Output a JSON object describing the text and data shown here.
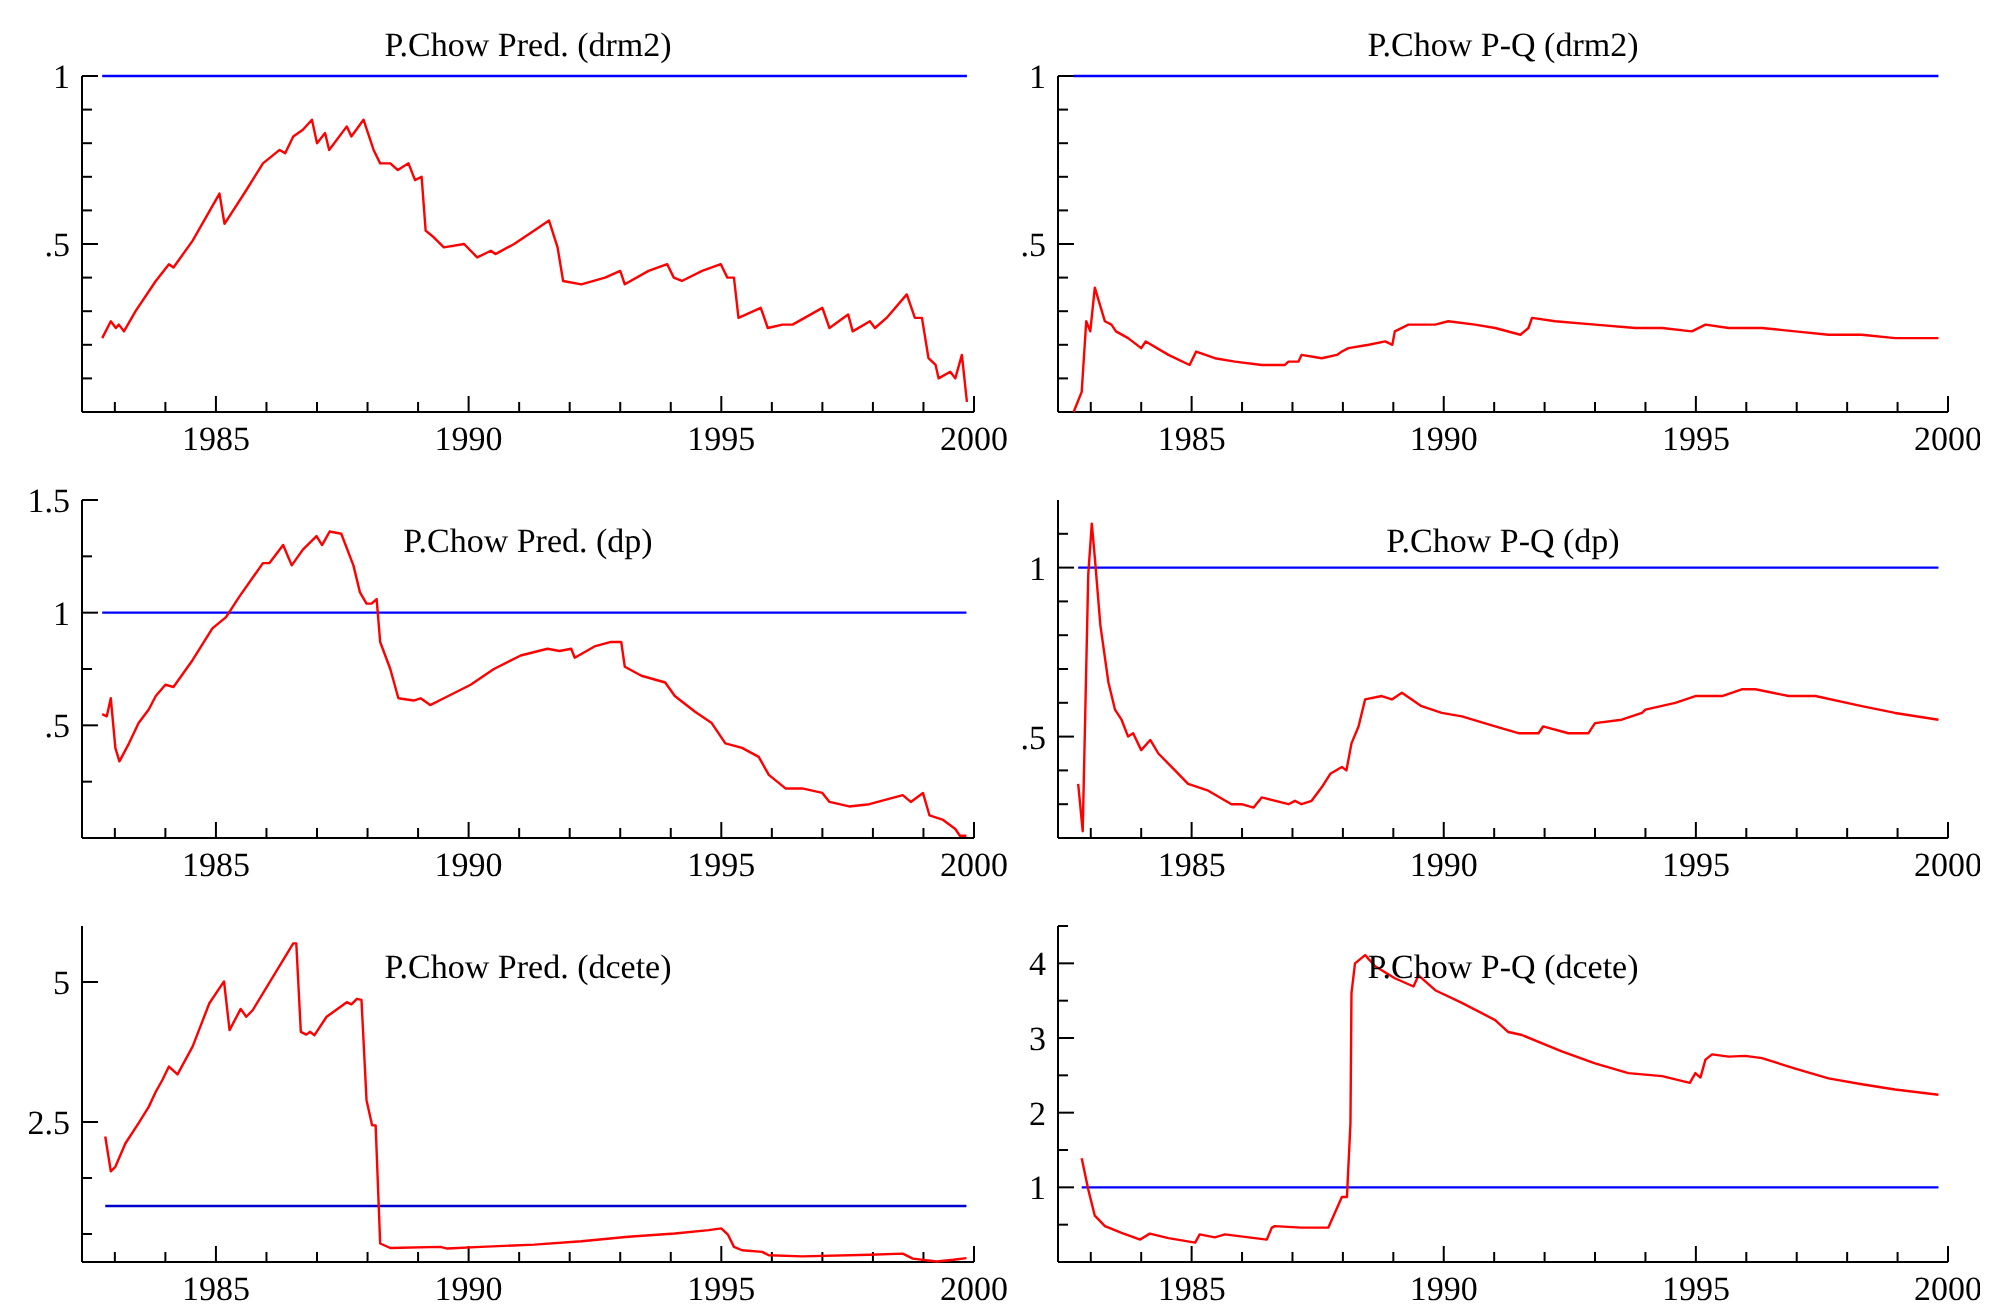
{
  "chart_data": [
    {
      "type": "line",
      "title": "P.Chow Pred. (drm2)",
      "x": [
        1982.75,
        1982.92,
        1983.02,
        1983.08,
        1983.18,
        1983.41,
        1983.81,
        1984.07,
        1984.16,
        1984.54,
        1985.07,
        1985.17,
        1985.6,
        1985.93,
        1986.26,
        1986.37,
        1986.53,
        1986.72,
        1986.9,
        1987.0,
        1987.16,
        1987.24,
        1987.59,
        1987.68,
        1987.92,
        1988.12,
        1988.25,
        1988.45,
        1988.6,
        1988.81,
        1988.94,
        1989.07,
        1989.15,
        1989.31,
        1989.51,
        1989.91,
        1990.17,
        1990.44,
        1990.53,
        1990.9,
        1991.3,
        1991.59,
        1991.76,
        1991.87,
        1992.23,
        1992.7,
        1993.0,
        1993.09,
        1993.56,
        1993.93,
        1994.06,
        1994.22,
        1994.62,
        1994.99,
        1995.12,
        1995.25,
        1995.34,
        1995.78,
        1995.92,
        1996.21,
        1996.41,
        1997.0,
        1997.14,
        1997.51,
        1997.6,
        1997.94,
        1998.04,
        1998.27,
        1998.67,
        1998.83,
        1998.97,
        1999.1,
        1999.24,
        1999.3,
        1999.53,
        1999.63,
        1999.76,
        1999.86
      ],
      "series": [
        {
          "color": "#ff0000",
          "values": [
            0.22,
            0.27,
            0.25,
            0.26,
            0.24,
            0.3,
            0.39,
            0.44,
            0.43,
            0.51,
            0.65,
            0.56,
            0.66,
            0.74,
            0.78,
            0.77,
            0.82,
            0.84,
            0.87,
            0.8,
            0.83,
            0.78,
            0.85,
            0.82,
            0.87,
            0.78,
            0.74,
            0.74,
            0.72,
            0.74,
            0.69,
            0.7,
            0.54,
            0.52,
            0.49,
            0.5,
            0.46,
            0.48,
            0.47,
            0.5,
            0.54,
            0.57,
            0.49,
            0.39,
            0.38,
            0.4,
            0.42,
            0.38,
            0.42,
            0.44,
            0.4,
            0.39,
            0.42,
            0.44,
            0.4,
            0.4,
            0.28,
            0.31,
            0.25,
            0.26,
            0.26,
            0.31,
            0.25,
            0.29,
            0.24,
            0.27,
            0.25,
            0.28,
            0.35,
            0.28,
            0.28,
            0.16,
            0.14,
            0.1,
            0.12,
            0.1,
            0.17,
            0.03
          ]
        }
      ],
      "xlim": [
        1982.35,
        2000
      ],
      "xticks": [
        {
          "value": 1983,
          "label": null
        },
        {
          "value": 1984,
          "label": null
        },
        1985,
        {
          "value": 1986,
          "label": null
        },
        {
          "value": 1987,
          "label": null
        },
        {
          "value": 1988,
          "label": null
        },
        {
          "value": 1989,
          "label": null
        },
        1990,
        {
          "value": 1991,
          "label": null
        },
        {
          "value": 1992,
          "label": null
        },
        {
          "value": 1993,
          "label": null
        },
        {
          "value": 1994,
          "label": null
        },
        1995,
        {
          "value": 1996,
          "label": null
        },
        {
          "value": 1997,
          "label": null
        },
        {
          "value": 1998,
          "label": null
        },
        {
          "value": 1999,
          "label": null
        },
        2000
      ],
      "ylim": [
        0,
        1
      ],
      "yticks": [
        {
          "value": 0.1,
          "label": null
        },
        {
          "value": 0.2,
          "label": null
        },
        {
          "value": 0.3,
          "label": null
        },
        {
          "value": 0.4,
          "label": null
        },
        {
          "value": 0.5,
          "label": ".5"
        },
        {
          "value": 0.6,
          "label": null
        },
        {
          "value": 0.7,
          "label": null
        },
        {
          "value": 0.8,
          "label": null
        },
        {
          "value": 0.9,
          "label": null
        },
        1
      ],
      "ref_lines": [
        {
          "axis": "y",
          "value": 1,
          "color": "#0000ff"
        }
      ],
      "grid": false
    },
    {
      "type": "line",
      "title": "P.Chow P-Q (drm2)",
      "x": [
        1982.66,
        1982.82,
        1982.91,
        1982.99,
        1983.08,
        1983.28,
        1983.41,
        1983.5,
        1983.74,
        1984.0,
        1984.09,
        1984.54,
        1984.96,
        1985.09,
        1985.46,
        1985.86,
        1986.39,
        1986.85,
        1986.92,
        1987.12,
        1987.18,
        1987.58,
        1987.88,
        1987.98,
        1988.11,
        1988.51,
        1988.84,
        1988.98,
        1989.03,
        1989.3,
        1989.83,
        1990.09,
        1990.62,
        1991.02,
        1991.52,
        1991.68,
        1991.75,
        1992.21,
        1993.0,
        1993.8,
        1994.33,
        1994.92,
        1995.19,
        1995.65,
        1996.31,
        1996.97,
        1997.63,
        1998.29,
        1998.95,
        1999.81
      ],
      "series": [
        {
          "color": "#ff0000",
          "values": [
            0,
            0.06,
            0.27,
            0.24,
            0.37,
            0.27,
            0.26,
            0.24,
            0.22,
            0.19,
            0.21,
            0.17,
            0.14,
            0.18,
            0.16,
            0.15,
            0.14,
            0.14,
            0.15,
            0.15,
            0.17,
            0.16,
            0.17,
            0.18,
            0.19,
            0.2,
            0.21,
            0.2,
            0.24,
            0.26,
            0.26,
            0.27,
            0.26,
            0.25,
            0.23,
            0.25,
            0.28,
            0.27,
            0.26,
            0.25,
            0.25,
            0.24,
            0.26,
            0.25,
            0.25,
            0.24,
            0.23,
            0.23,
            0.22,
            0.22
          ]
        }
      ],
      "xlim": [
        1982.35,
        2000
      ],
      "xticks": [
        {
          "value": 1983,
          "label": null
        },
        {
          "value": 1984,
          "label": null
        },
        1985,
        {
          "value": 1986,
          "label": null
        },
        {
          "value": 1987,
          "label": null
        },
        {
          "value": 1988,
          "label": null
        },
        {
          "value": 1989,
          "label": null
        },
        1990,
        {
          "value": 1991,
          "label": null
        },
        {
          "value": 1992,
          "label": null
        },
        {
          "value": 1993,
          "label": null
        },
        {
          "value": 1994,
          "label": null
        },
        1995,
        {
          "value": 1996,
          "label": null
        },
        {
          "value": 1997,
          "label": null
        },
        {
          "value": 1998,
          "label": null
        },
        {
          "value": 1999,
          "label": null
        },
        2000
      ],
      "ylim": [
        0,
        1
      ],
      "yticks": [
        {
          "value": 0.1,
          "label": null
        },
        {
          "value": 0.2,
          "label": null
        },
        {
          "value": 0.3,
          "label": null
        },
        {
          "value": 0.4,
          "label": null
        },
        {
          "value": 0.5,
          "label": ".5"
        },
        {
          "value": 0.6,
          "label": null
        },
        {
          "value": 0.7,
          "label": null
        },
        {
          "value": 0.8,
          "label": null
        },
        {
          "value": 0.9,
          "label": null
        },
        1
      ],
      "ref_lines": [
        {
          "axis": "y",
          "value": 1,
          "color": "#0000ff"
        }
      ],
      "grid": false
    },
    {
      "type": "line",
      "title": "P.Chow Pred. (dp)",
      "x": [
        1982.75,
        1982.84,
        1982.92,
        1983.01,
        1983.09,
        1983.28,
        1983.47,
        1983.67,
        1983.81,
        1984.0,
        1984.16,
        1984.54,
        1984.93,
        1985.2,
        1985.46,
        1985.93,
        1986.06,
        1986.33,
        1986.5,
        1986.72,
        1986.99,
        1987.1,
        1987.25,
        1987.48,
        1987.72,
        1987.85,
        1987.98,
        1988.08,
        1988.18,
        1988.25,
        1988.45,
        1988.61,
        1988.91,
        1989.05,
        1989.24,
        1989.51,
        1990.04,
        1990.5,
        1991.03,
        1991.56,
        1991.8,
        1992.03,
        1992.1,
        1992.49,
        1992.82,
        1993.02,
        1993.09,
        1993.42,
        1993.89,
        1994.08,
        1994.48,
        1994.81,
        1995.08,
        1995.41,
        1995.74,
        1995.94,
        1996.27,
        1996.6,
        1997.0,
        1997.14,
        1997.53,
        1997.93,
        1998.59,
        1998.75,
        1998.99,
        1999.12,
        1999.39,
        1999.63,
        1999.72,
        1999.85
      ],
      "series": [
        {
          "color": "#ff0000",
          "values": [
            0.55,
            0.54,
            0.62,
            0.4,
            0.34,
            0.42,
            0.51,
            0.57,
            0.63,
            0.68,
            0.67,
            0.79,
            0.93,
            0.98,
            1.07,
            1.22,
            1.22,
            1.3,
            1.21,
            1.28,
            1.34,
            1.3,
            1.36,
            1.35,
            1.21,
            1.09,
            1.04,
            1.04,
            1.06,
            0.87,
            0.75,
            0.62,
            0.61,
            0.62,
            0.59,
            0.62,
            0.68,
            0.75,
            0.81,
            0.84,
            0.83,
            0.84,
            0.8,
            0.85,
            0.87,
            0.87,
            0.76,
            0.72,
            0.69,
            0.63,
            0.56,
            0.51,
            0.42,
            0.4,
            0.36,
            0.28,
            0.22,
            0.22,
            0.2,
            0.16,
            0.14,
            0.15,
            0.19,
            0.16,
            0.2,
            0.1,
            0.08,
            0.04,
            0.01,
            0.01
          ]
        }
      ],
      "xlim": [
        1982.35,
        2000
      ],
      "xticks": [
        {
          "value": 1983,
          "label": null
        },
        {
          "value": 1984,
          "label": null
        },
        1985,
        {
          "value": 1986,
          "label": null
        },
        {
          "value": 1987,
          "label": null
        },
        {
          "value": 1988,
          "label": null
        },
        {
          "value": 1989,
          "label": null
        },
        1990,
        {
          "value": 1991,
          "label": null
        },
        {
          "value": 1992,
          "label": null
        },
        {
          "value": 1993,
          "label": null
        },
        {
          "value": 1994,
          "label": null
        },
        1995,
        {
          "value": 1996,
          "label": null
        },
        {
          "value": 1997,
          "label": null
        },
        {
          "value": 1998,
          "label": null
        },
        {
          "value": 1999,
          "label": null
        },
        2000
      ],
      "ylim": [
        0,
        1.5
      ],
      "yticks": [
        {
          "value": 0.25,
          "label": null
        },
        {
          "value": 0.5,
          "label": ".5"
        },
        {
          "value": 0.75,
          "label": null
        },
        1,
        {
          "value": 1.25,
          "label": null
        },
        1.5
      ],
      "ref_lines": [
        {
          "axis": "y",
          "value": 1,
          "color": "#0000ff"
        }
      ],
      "grid": false
    },
    {
      "type": "line",
      "title": "P.Chow P-Q (dp)",
      "x": [
        1982.75,
        1982.84,
        1982.95,
        1983.02,
        1983.08,
        1983.19,
        1983.35,
        1983.48,
        1983.61,
        1983.74,
        1983.84,
        1984.0,
        1984.18,
        1984.34,
        1984.67,
        1984.93,
        1985.33,
        1985.79,
        1985.99,
        1986.23,
        1986.39,
        1986.92,
        1987.05,
        1987.18,
        1987.38,
        1987.58,
        1987.75,
        1987.98,
        1988.07,
        1988.17,
        1988.31,
        1988.44,
        1988.77,
        1988.97,
        1989.17,
        1989.56,
        1989.96,
        1990.36,
        1991.02,
        1991.48,
        1991.88,
        1991.97,
        1992.47,
        1992.87,
        1993.0,
        1993.53,
        1993.93,
        1994.0,
        1994.59,
        1994.99,
        1995.25,
        1995.52,
        1995.91,
        1996.18,
        1996.84,
        1997.37,
        1998.29,
        1998.95,
        1999.81
      ],
      "series": [
        {
          "color": "#ff0000",
          "values": [
            0.36,
            0.22,
            0.98,
            1.13,
            1.03,
            0.83,
            0.66,
            0.58,
            0.55,
            0.5,
            0.51,
            0.46,
            0.49,
            0.45,
            0.4,
            0.36,
            0.34,
            0.3,
            0.3,
            0.29,
            0.32,
            0.3,
            0.31,
            0.3,
            0.31,
            0.35,
            0.39,
            0.41,
            0.4,
            0.48,
            0.53,
            0.61,
            0.62,
            0.61,
            0.63,
            0.59,
            0.57,
            0.56,
            0.53,
            0.51,
            0.51,
            0.53,
            0.51,
            0.51,
            0.54,
            0.55,
            0.57,
            0.58,
            0.6,
            0.62,
            0.62,
            0.62,
            0.64,
            0.64,
            0.62,
            0.62,
            0.59,
            0.57,
            0.55
          ]
        }
      ],
      "xlim": [
        1982.35,
        2000
      ],
      "xticks": [
        {
          "value": 1983,
          "label": null
        },
        {
          "value": 1984,
          "label": null
        },
        1985,
        {
          "value": 1986,
          "label": null
        },
        {
          "value": 1987,
          "label": null
        },
        {
          "value": 1988,
          "label": null
        },
        {
          "value": 1989,
          "label": null
        },
        1990,
        {
          "value": 1991,
          "label": null
        },
        {
          "value": 1992,
          "label": null
        },
        {
          "value": 1993,
          "label": null
        },
        {
          "value": 1994,
          "label": null
        },
        1995,
        {
          "value": 1996,
          "label": null
        },
        {
          "value": 1997,
          "label": null
        },
        {
          "value": 1998,
          "label": null
        },
        {
          "value": 1999,
          "label": null
        },
        2000
      ],
      "ylim": [
        0.2,
        1.2
      ],
      "yticks": [
        {
          "value": 0.3,
          "label": null
        },
        {
          "value": 0.4,
          "label": null
        },
        {
          "value": 0.5,
          "label": ".5"
        },
        {
          "value": 0.6,
          "label": null
        },
        {
          "value": 0.7,
          "label": null
        },
        {
          "value": 0.8,
          "label": null
        },
        {
          "value": 0.9,
          "label": null
        },
        1,
        {
          "value": 1.1,
          "label": null
        }
      ],
      "ref_lines": [
        {
          "axis": "y",
          "value": 1,
          "color": "#0000ff"
        }
      ],
      "grid": false
    },
    {
      "type": "line",
      "title": "P.Chow Pred. (dcete)",
      "x": [
        1982.81,
        1982.92,
        1983.01,
        1983.21,
        1983.47,
        1983.67,
        1983.81,
        1983.94,
        1984.07,
        1984.24,
        1984.54,
        1984.87,
        1985.16,
        1985.27,
        1985.49,
        1985.6,
        1985.73,
        1986.53,
        1986.59,
        1986.68,
        1986.79,
        1986.86,
        1986.95,
        1987.19,
        1987.59,
        1987.68,
        1987.79,
        1987.88,
        1987.98,
        1988.09,
        1988.16,
        1988.25,
        1988.45,
        1989.44,
        1989.58,
        1990.24,
        1991.3,
        1992.23,
        1993.16,
        1994.08,
        1994.75,
        1995.0,
        1995.13,
        1995.25,
        1995.41,
        1995.81,
        1995.94,
        1996.6,
        1997.93,
        1998.59,
        1998.79,
        1999.26,
        1999.59,
        1999.85
      ],
      "series": [
        {
          "color": "#ff0000",
          "values": [
            2.24,
            1.62,
            1.7,
            2.12,
            2.48,
            2.77,
            3.04,
            3.25,
            3.49,
            3.35,
            3.85,
            4.62,
            5.01,
            4.14,
            4.52,
            4.38,
            4.5,
            5.69,
            5.69,
            4.11,
            4.06,
            4.11,
            4.05,
            4.38,
            4.64,
            4.6,
            4.7,
            4.68,
            2.89,
            2.44,
            2.44,
            0.33,
            0.25,
            0.27,
            0.24,
            0.27,
            0.31,
            0.37,
            0.45,
            0.51,
            0.57,
            0.6,
            0.49,
            0.27,
            0.21,
            0.18,
            0.12,
            0.1,
            0.13,
            0.15,
            0.06,
            0.01,
            0.04,
            0.07
          ]
        }
      ],
      "xlim": [
        1982.35,
        2000
      ],
      "xticks": [
        {
          "value": 1983,
          "label": null
        },
        {
          "value": 1984,
          "label": null
        },
        1985,
        {
          "value": 1986,
          "label": null
        },
        {
          "value": 1987,
          "label": null
        },
        {
          "value": 1988,
          "label": null
        },
        {
          "value": 1989,
          "label": null
        },
        1990,
        {
          "value": 1991,
          "label": null
        },
        {
          "value": 1992,
          "label": null
        },
        {
          "value": 1993,
          "label": null
        },
        {
          "value": 1994,
          "label": null
        },
        1995,
        {
          "value": 1996,
          "label": null
        },
        {
          "value": 1997,
          "label": null
        },
        {
          "value": 1998,
          "label": null
        },
        {
          "value": 1999,
          "label": null
        },
        2000
      ],
      "ylim": [
        0,
        6
      ],
      "yticks": [
        {
          "value": 0.5,
          "label": null
        },
        {
          "value": 1.5,
          "label": null
        },
        2.5,
        5
      ],
      "ref_lines": [
        {
          "axis": "y",
          "value": 1,
          "color": "#0000cc"
        }
      ],
      "grid": false
    },
    {
      "type": "line",
      "title": "P.Chow P-Q (dcete)",
      "x": [
        1982.82,
        1982.95,
        1983.08,
        1983.28,
        1983.61,
        1983.98,
        1984.17,
        1984.54,
        1985.07,
        1985.16,
        1985.46,
        1985.66,
        1986.49,
        1986.59,
        1986.65,
        1987.18,
        1987.71,
        1987.98,
        1988.08,
        1988.15,
        1988.17,
        1988.24,
        1988.44,
        1988.64,
        1989.03,
        1989.4,
        1989.5,
        1989.83,
        1990.36,
        1991.02,
        1991.28,
        1991.55,
        1992.34,
        1993.0,
        1993.66,
        1994.33,
        1994.88,
        1994.99,
        1995.09,
        1995.19,
        1995.32,
        1995.65,
        1995.98,
        1996.31,
        1996.97,
        1997.63,
        1998.29,
        1998.95,
        1999.81
      ],
      "series": [
        {
          "color": "#ff0000",
          "values": [
            1.39,
            0.97,
            0.62,
            0.48,
            0.39,
            0.3,
            0.38,
            0.32,
            0.26,
            0.37,
            0.33,
            0.37,
            0.3,
            0.46,
            0.48,
            0.46,
            0.46,
            0.87,
            0.87,
            1.86,
            3.6,
            4.0,
            4.11,
            3.96,
            3.8,
            3.69,
            3.84,
            3.64,
            3.47,
            3.24,
            3.08,
            3.04,
            2.82,
            2.66,
            2.53,
            2.49,
            2.4,
            2.53,
            2.47,
            2.71,
            2.78,
            2.75,
            2.76,
            2.73,
            2.59,
            2.46,
            2.38,
            2.31,
            2.24
          ]
        }
      ],
      "xlim": [
        1982.35,
        2000
      ],
      "xticks": [
        {
          "value": 1983,
          "label": null
        },
        {
          "value": 1984,
          "label": null
        },
        1985,
        {
          "value": 1986,
          "label": null
        },
        {
          "value": 1987,
          "label": null
        },
        {
          "value": 1988,
          "label": null
        },
        {
          "value": 1989,
          "label": null
        },
        1990,
        {
          "value": 1991,
          "label": null
        },
        {
          "value": 1992,
          "label": null
        },
        {
          "value": 1993,
          "label": null
        },
        {
          "value": 1994,
          "label": null
        },
        1995,
        {
          "value": 1996,
          "label": null
        },
        {
          "value": 1997,
          "label": null
        },
        {
          "value": 1998,
          "label": null
        },
        {
          "value": 1999,
          "label": null
        },
        2000
      ],
      "ylim": [
        0,
        4.5
      ],
      "yticks": [
        {
          "value": 0.5,
          "label": null
        },
        1,
        {
          "value": 1.5,
          "label": null
        },
        2,
        {
          "value": 2.5,
          "label": null
        },
        3,
        {
          "value": 3.5,
          "label": null
        },
        4,
        {
          "value": 4.5,
          "label": null
        }
      ],
      "ref_lines": [
        {
          "axis": "y",
          "value": 1,
          "color": "#0000ff"
        }
      ],
      "grid": false
    }
  ]
}
